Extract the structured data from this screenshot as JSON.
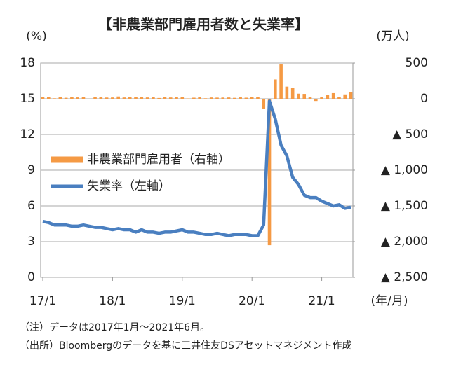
{
  "chart_data": {
    "type": "combo",
    "title": "【非農業部門雇用者数と失業率】",
    "y_label": "(%)",
    "y2_label": "(万人)",
    "x_label": "(年/月)",
    "categories": [
      "17/1",
      null,
      null,
      null,
      null,
      null,
      null,
      null,
      null,
      null,
      null,
      null,
      "18/1",
      null,
      null,
      null,
      null,
      null,
      null,
      null,
      null,
      null,
      null,
      null,
      "19/1",
      null,
      null,
      null,
      null,
      null,
      null,
      null,
      null,
      null,
      null,
      null,
      "20/1",
      null,
      null,
      null,
      null,
      null,
      null,
      null,
      null,
      null,
      null,
      null,
      "21/1",
      null,
      null,
      null,
      null,
      null
    ],
    "series": [
      {
        "name": "非農業部門雇用者（右軸）",
        "type": "bar",
        "axis": "y2",
        "color": "#f59a44",
        "values": [
          26,
          20,
          7,
          21,
          14,
          24,
          19,
          22,
          1,
          27,
          22,
          17,
          18,
          32,
          18,
          20,
          27,
          23,
          18,
          27,
          11,
          27,
          18,
          22,
          27,
          5,
          15,
          22,
          7,
          18,
          16,
          17,
          18,
          13,
          25,
          15,
          21,
          25,
          -137,
          -2050,
          270,
          480,
          170,
          150,
          71,
          68,
          26,
          -31,
          23,
          54,
          79,
          27,
          61,
          96
        ]
      },
      {
        "name": "失業率（左軸）",
        "type": "line",
        "color": "#4a7fc0",
        "values": [
          4.7,
          4.6,
          4.4,
          4.4,
          4.4,
          4.3,
          4.3,
          4.4,
          4.3,
          4.2,
          4.2,
          4.1,
          4.0,
          4.1,
          4.0,
          4.0,
          3.8,
          4.0,
          3.8,
          3.8,
          3.7,
          3.8,
          3.8,
          3.9,
          4.0,
          3.8,
          3.8,
          3.7,
          3.6,
          3.6,
          3.7,
          3.6,
          3.5,
          3.6,
          3.6,
          3.6,
          3.5,
          3.5,
          4.4,
          14.8,
          13.3,
          11.1,
          10.2,
          8.4,
          7.8,
          6.9,
          6.7,
          6.7,
          6.4,
          6.2,
          6.0,
          6.1,
          5.8,
          5.9
        ]
      }
    ],
    "ylim": [
      0,
      18
    ],
    "yticks": [
      0,
      3,
      6,
      9,
      12,
      15,
      18
    ],
    "y2lim": [
      -2500,
      500
    ],
    "y2ticks": [
      500,
      0,
      {
        "value": -500,
        "label": "▲ 500"
      },
      {
        "value": -1000,
        "label": "▲ 1,000"
      },
      {
        "value": -1500,
        "label": "▲ 1,500"
      },
      {
        "value": -2000,
        "label": "▲ 2,000"
      },
      {
        "value": -2500,
        "label": "▲ 2,500"
      }
    ],
    "grid": true,
    "legend": "left",
    "notes": [
      "（注）データは2017年1月～2021年6月。",
      "（出所）Bloombergのデータを基に三井住友DSアセットマネジメント作成"
    ]
  }
}
